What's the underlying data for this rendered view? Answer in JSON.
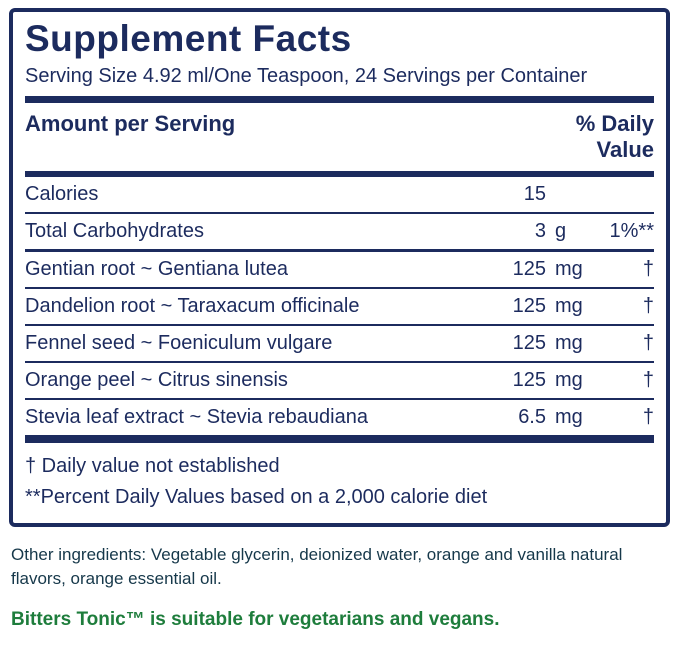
{
  "panel": {
    "title": "Supplement Facts",
    "serving_info": "Serving Size 4.92 ml/One Teaspoon, 24 Servings per Container",
    "header_left": "Amount per Serving",
    "header_right": "% Daily Value",
    "rows": [
      {
        "name": "Calories",
        "amount": "15",
        "unit": "",
        "dv": ""
      },
      {
        "name": "Total Carbohydrates",
        "amount": "3",
        "unit": "g",
        "dv": "1%**"
      },
      {
        "name": "Gentian root ~ Gentiana lutea",
        "amount": "125",
        "unit": "mg",
        "dv": "†"
      },
      {
        "name": "Dandelion root ~ Taraxacum officinale",
        "amount": "125",
        "unit": "mg",
        "dv": "†"
      },
      {
        "name": "Fennel seed ~ Foeniculum vulgare",
        "amount": "125",
        "unit": "mg",
        "dv": "†"
      },
      {
        "name": "Orange peel ~ Citrus sinensis",
        "amount": "125",
        "unit": "mg",
        "dv": "†"
      },
      {
        "name": "Stevia leaf extract ~ Stevia rebaudiana",
        "amount": "6.5",
        "unit": "mg",
        "dv": "†"
      }
    ],
    "footnotes": [
      "†  Daily value not established",
      "**Percent Daily Values based on a 2,000 calorie diet"
    ]
  },
  "other_ingredients": "Other ingredients: Vegetable glycerin, deionized water, orange and vanilla natural flavors, orange essential oil.",
  "vegan_note": "Bitters Tonic™ is suitable for vegetarians and vegans.",
  "colors": {
    "navy": "#1c2b5e",
    "other_text": "#16384a",
    "green": "#1e7d3c"
  }
}
